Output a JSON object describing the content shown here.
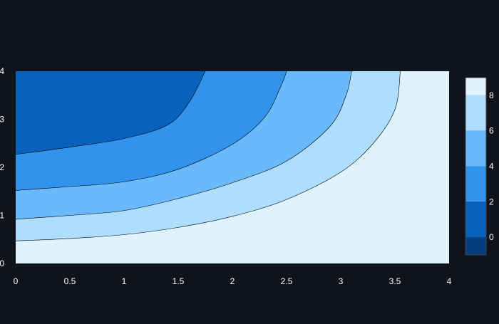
{
  "chart_data": {
    "type": "contour",
    "title": "",
    "xlabel": "",
    "ylabel": "",
    "xlim": [
      0,
      4
    ],
    "ylim": [
      0,
      4
    ],
    "x_ticks": [
      "0",
      "0.5",
      "1",
      "1.5",
      "2",
      "2.5",
      "3",
      "3.5",
      "4"
    ],
    "y_ticks": [
      "0",
      "1",
      "2",
      "3",
      "4"
    ],
    "contour_levels": [
      8,
      6,
      4,
      2,
      0
    ],
    "contour_lines": [
      {
        "level": 8,
        "points": [
          [
            0,
            0.47
          ],
          [
            0.5,
            0.52
          ],
          [
            1,
            0.6
          ],
          [
            1.5,
            0.75
          ],
          [
            2,
            0.98
          ],
          [
            2.5,
            1.33
          ],
          [
            3,
            1.9
          ],
          [
            3.3,
            2.5
          ],
          [
            3.5,
            3.2
          ],
          [
            3.55,
            4
          ]
        ]
      },
      {
        "level": 6,
        "points": [
          [
            0,
            0.92
          ],
          [
            0.5,
            1.0
          ],
          [
            1,
            1.1
          ],
          [
            1.5,
            1.35
          ],
          [
            2,
            1.68
          ],
          [
            2.5,
            2.13
          ],
          [
            2.9,
            2.85
          ],
          [
            3.05,
            3.5
          ],
          [
            3.1,
            4
          ]
        ]
      },
      {
        "level": 4,
        "points": [
          [
            0,
            1.52
          ],
          [
            0.5,
            1.6
          ],
          [
            1,
            1.7
          ],
          [
            1.5,
            1.96
          ],
          [
            2,
            2.48
          ],
          [
            2.3,
            3.05
          ],
          [
            2.45,
            3.7
          ],
          [
            2.5,
            4
          ]
        ]
      },
      {
        "level": 2,
        "points": [
          [
            0,
            2.27
          ],
          [
            0.5,
            2.42
          ],
          [
            1,
            2.6
          ],
          [
            1.4,
            2.88
          ],
          [
            1.6,
            3.35
          ],
          [
            1.75,
            4
          ]
        ]
      }
    ],
    "fill_colors": [
      "#dff3fe",
      "#aedefd",
      "#6ab9fb",
      "#3193ec",
      "#0761bd"
    ],
    "colorbar": {
      "ticks": [
        "0",
        "2",
        "4",
        "6",
        "8"
      ],
      "range": [
        -1,
        9
      ],
      "bands": [
        {
          "from": -1,
          "to": 0,
          "color": "#053e7c"
        },
        {
          "from": 0,
          "to": 2,
          "color": "#0761bd"
        },
        {
          "from": 2,
          "to": 4,
          "color": "#3193ec"
        },
        {
          "from": 4,
          "to": 6,
          "color": "#6ab9fb"
        },
        {
          "from": 6,
          "to": 8,
          "color": "#aedefd"
        },
        {
          "from": 8,
          "to": 9,
          "color": "#dff3fe"
        }
      ]
    },
    "background_color": "#10131b",
    "text_color": "#ffffff",
    "grid": false,
    "legend": "colorbar-right"
  }
}
